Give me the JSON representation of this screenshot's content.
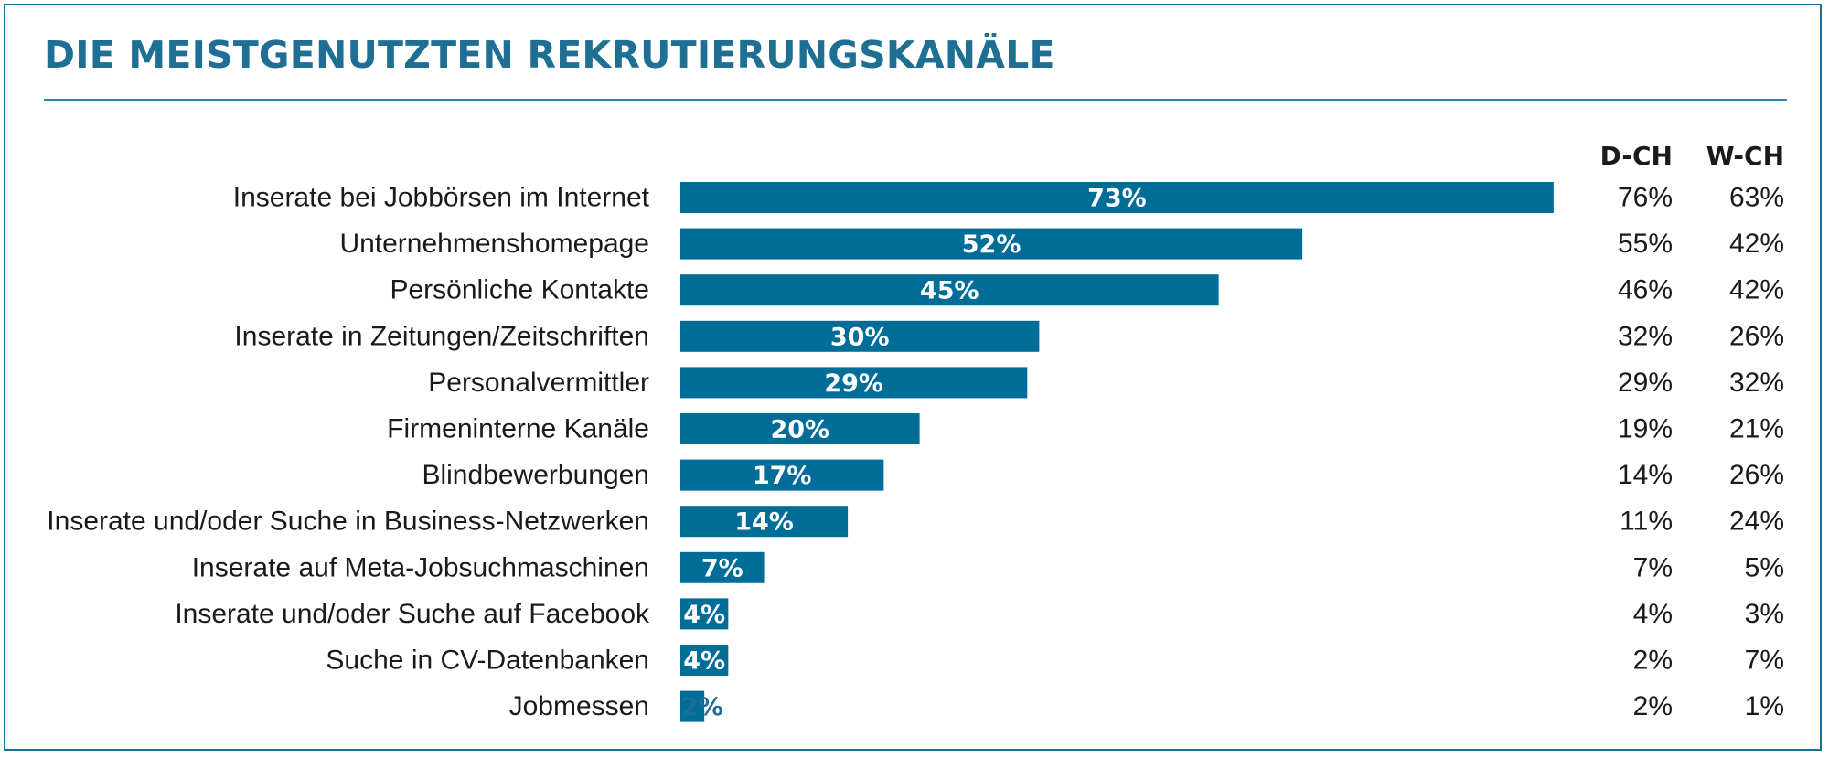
{
  "title": "DIE MEISTGENUTZTEN REKRUTIERUNGSKANÄLE",
  "colors": {
    "bar": "#006d98",
    "text": "#1a1a1a",
    "accent": "#1f6f95",
    "label_on_bar": "#ffffff"
  },
  "chart_data": {
    "type": "bar",
    "orientation": "horizontal",
    "title": "DIE MEISTGENUTZTEN REKRUTIERUNGSKANÄLE",
    "xlim": [
      0,
      100
    ],
    "grid": false,
    "legend": "none",
    "categories": [
      "Inserate bei Jobbörsen im Internet",
      "Unternehmenshomepage",
      "Persönliche Kontakte",
      "Inserate in Zeitungen/Zeitschriften",
      "Personalvermittler",
      "Firmeninterne Kanäle",
      "Blindbewerbungen",
      "Inserate und/oder Suche in Business-Netzwerken",
      "Inserate auf Meta-Jobsuchmaschinen",
      "Inserate und/oder Suche auf Facebook",
      "Suche in CV-Datenbanken",
      "Jobmessen"
    ],
    "values": [
      73,
      52,
      45,
      30,
      29,
      20,
      17,
      14,
      7,
      4,
      4,
      2
    ],
    "value_labels": [
      "73%",
      "52%",
      "45%",
      "30%",
      "29%",
      "20%",
      "17%",
      "14%",
      "7%",
      "4%",
      "4%",
      "2%"
    ],
    "columns": [
      {
        "header": "D-CH",
        "values": [
          "76%",
          "55%",
          "46%",
          "32%",
          "29%",
          "19%",
          "14%",
          "11%",
          "7%",
          "4%",
          "2%",
          "2%"
        ]
      },
      {
        "header": "W-CH",
        "values": [
          "63%",
          "42%",
          "42%",
          "26%",
          "32%",
          "21%",
          "26%",
          "24%",
          "5%",
          "3%",
          "7%",
          "1%"
        ]
      }
    ]
  }
}
